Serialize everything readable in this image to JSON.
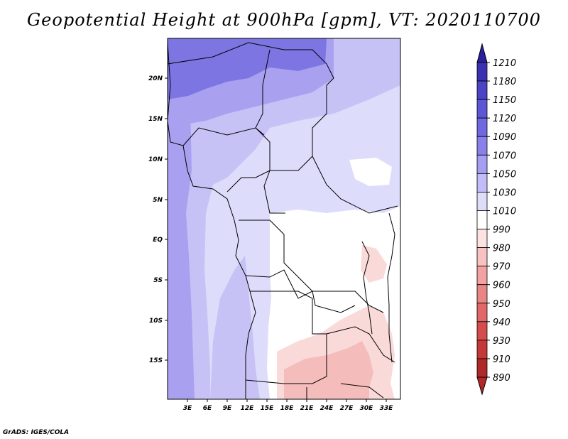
{
  "title": "Geopotential Height at 900hPa [gpm], VT: 2020110700",
  "credit": "GrADS: IGES/COLA",
  "map": {
    "lon_ticks": [
      "3E",
      "6E",
      "9E",
      "12E",
      "15E",
      "18E",
      "21E",
      "24E",
      "27E",
      "30E",
      "33E"
    ],
    "lat_ticks": [
      "20N",
      "15N",
      "10N",
      "5N",
      "EQ",
      "5S",
      "10S",
      "15S"
    ],
    "background_color": "#e0e0fb"
  },
  "colorbar": {
    "labels": [
      "1210",
      "1180",
      "1150",
      "1120",
      "1090",
      "1070",
      "1050",
      "1030",
      "1010",
      "990",
      "980",
      "970",
      "960",
      "950",
      "940",
      "930",
      "910",
      "890"
    ],
    "colors": [
      "#2a1f9c",
      "#3a31b0",
      "#4b44c4",
      "#5c57d6",
      "#7068e0",
      "#8a80ea",
      "#a69ef2",
      "#c2bcf7",
      "#dedcfb",
      "#ffffff",
      "#fde2e2",
      "#f8c2c2",
      "#f2a2a2",
      "#ea8585",
      "#e06868",
      "#d44c4c",
      "#c43838",
      "#b02828"
    ]
  },
  "field_colors": {
    "deep_blue": "#7d75e2",
    "mid_blue": "#a9a1f0",
    "light_blue": "#c7c2f6",
    "pale_blue": "#dedcfb",
    "white": "#ffffff",
    "light_pink": "#fad9d9",
    "pink": "#f5bcbc"
  }
}
